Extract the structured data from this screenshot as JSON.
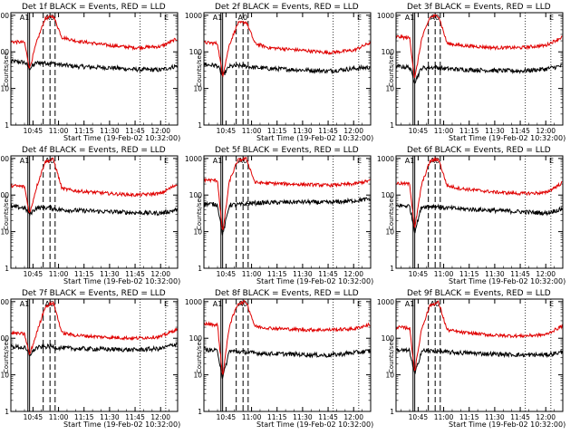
{
  "figure": {
    "title_template": "Det {det} BLACK = Events, RED = LLD",
    "ylabel": "Counts/sec",
    "xlabel": "Start Time (19-Feb-02 10:32:00)",
    "x_ticks": [
      "10:45",
      "11:00",
      "11:15",
      "11:30",
      "11:45",
      "12:00"
    ],
    "y_ticks": [
      "1",
      "10",
      "100",
      "1000"
    ],
    "colors": {
      "events": "#000000",
      "lld": "#e00000",
      "axes": "#000000",
      "background": "#ffffff"
    }
  },
  "chart_data": [
    {
      "type": "line",
      "detector": "1f",
      "title": "Det 1f BLACK = Events, RED = LLD",
      "attenuator_labels": [
        "A1",
        "A0",
        "E"
      ],
      "xlabel": "Start Time (19-Feb-02 10:32:00)",
      "ylabel": "Counts/sec",
      "ylim": [
        1,
        1000
      ],
      "yscale": "log",
      "series": [
        {
          "name": "Events",
          "color": "#000000",
          "x": [
            "10:32",
            "10:40",
            "10:43",
            "10:47",
            "10:55",
            "11:00",
            "11:10",
            "11:30",
            "11:45",
            "12:00",
            "12:10"
          ],
          "values": [
            55,
            52,
            35,
            50,
            50,
            45,
            40,
            37,
            33,
            32,
            42
          ]
        },
        {
          "name": "LLD",
          "color": "#e00000",
          "x": [
            "10:32",
            "10:40",
            "10:43",
            "10:47",
            "10:52",
            "10:57",
            "11:02",
            "11:10",
            "11:30",
            "11:45",
            "12:00",
            "12:10"
          ],
          "values": [
            190,
            180,
            35,
            175,
            800,
            950,
            250,
            200,
            150,
            130,
            140,
            230
          ]
        }
      ]
    },
    {
      "type": "line",
      "detector": "2f",
      "title": "Det 2f BLACK = Events, RED = LLD",
      "attenuator_labels": [
        "A1",
        "A0",
        "E"
      ],
      "xlabel": "Start Time (19-Feb-02 10:32:00)",
      "ylabel": "Counts/sec",
      "ylim": [
        1,
        1000
      ],
      "yscale": "log",
      "series": [
        {
          "name": "Events",
          "color": "#000000",
          "x": [
            "10:32",
            "10:40",
            "10:43",
            "10:47",
            "10:55",
            "11:00",
            "11:10",
            "11:30",
            "11:45",
            "12:00",
            "12:10"
          ],
          "values": [
            45,
            42,
            22,
            40,
            42,
            38,
            35,
            32,
            30,
            35,
            38
          ]
        },
        {
          "name": "LLD",
          "color": "#e00000",
          "x": [
            "10:32",
            "10:40",
            "10:43",
            "10:47",
            "10:52",
            "10:57",
            "11:02",
            "11:10",
            "11:30",
            "11:45",
            "12:00",
            "12:10"
          ],
          "values": [
            180,
            170,
            22,
            160,
            600,
            650,
            170,
            130,
            110,
            95,
            110,
            180
          ]
        }
      ]
    },
    {
      "type": "line",
      "detector": "3f",
      "title": "Det 3f BLACK = Events, RED = LLD",
      "attenuator_labels": [
        "A1",
        "A0",
        "E"
      ],
      "xlabel": "Start Time (19-Feb-02 10:32:00)",
      "ylabel": "Counts/sec",
      "ylim": [
        1,
        1000
      ],
      "yscale": "log",
      "series": [
        {
          "name": "Events",
          "color": "#000000",
          "x": [
            "10:32",
            "10:40",
            "10:43",
            "10:47",
            "10:55",
            "11:00",
            "11:10",
            "11:30",
            "11:45",
            "12:00",
            "12:10"
          ],
          "values": [
            40,
            38,
            15,
            36,
            38,
            35,
            33,
            31,
            30,
            34,
            42
          ]
        },
        {
          "name": "LLD",
          "color": "#e00000",
          "x": [
            "10:32",
            "10:40",
            "10:43",
            "10:47",
            "10:52",
            "10:57",
            "11:02",
            "11:10",
            "11:30",
            "11:45",
            "12:00",
            "12:10"
          ],
          "values": [
            260,
            240,
            18,
            220,
            900,
            980,
            170,
            150,
            130,
            130,
            150,
            260
          ]
        }
      ]
    },
    {
      "type": "line",
      "detector": "4f",
      "title": "Det 4f BLACK = Events, RED = LLD",
      "attenuator_labels": [
        "A1",
        "A0",
        "E"
      ],
      "xlabel": "Start Time (19-Feb-02 10:32:00)",
      "ylabel": "Counts/sec",
      "ylim": [
        1,
        1000
      ],
      "yscale": "log",
      "series": [
        {
          "name": "Events",
          "color": "#000000",
          "x": [
            "10:32",
            "10:40",
            "10:43",
            "10:47",
            "10:55",
            "11:00",
            "11:10",
            "11:30",
            "11:45",
            "12:00",
            "12:10"
          ],
          "values": [
            48,
            45,
            30,
            45,
            45,
            40,
            38,
            35,
            33,
            32,
            40
          ]
        },
        {
          "name": "LLD",
          "color": "#e00000",
          "x": [
            "10:32",
            "10:40",
            "10:43",
            "10:47",
            "10:52",
            "10:57",
            "11:02",
            "11:10",
            "11:30",
            "11:45",
            "12:00",
            "12:10"
          ],
          "values": [
            180,
            170,
            30,
            160,
            800,
            950,
            150,
            130,
            110,
            100,
            110,
            200
          ]
        }
      ]
    },
    {
      "type": "line",
      "detector": "5f",
      "title": "Det 5f BLACK = Events, RED = LLD",
      "attenuator_labels": [
        "A1",
        "A0",
        "E"
      ],
      "xlabel": "Start Time (19-Feb-02 10:32:00)",
      "ylabel": "Counts/sec",
      "ylim": [
        1,
        1000
      ],
      "yscale": "log",
      "series": [
        {
          "name": "Events",
          "color": "#000000",
          "x": [
            "10:32",
            "10:40",
            "10:43",
            "10:47",
            "10:55",
            "11:00",
            "11:10",
            "11:30",
            "11:45",
            "12:00",
            "12:10"
          ],
          "values": [
            58,
            55,
            8,
            54,
            55,
            60,
            62,
            65,
            62,
            70,
            78
          ]
        },
        {
          "name": "LLD",
          "color": "#e00000",
          "x": [
            "10:32",
            "10:40",
            "10:43",
            "10:47",
            "10:52",
            "10:57",
            "11:02",
            "11:10",
            "11:30",
            "11:45",
            "12:00",
            "12:10"
          ],
          "values": [
            260,
            250,
            9,
            240,
            900,
            980,
            220,
            210,
            195,
            185,
            200,
            250
          ]
        }
      ]
    },
    {
      "type": "line",
      "detector": "6f",
      "title": "Det 6f BLACK = Events, RED = LLD",
      "attenuator_labels": [
        "A1",
        "A0",
        "E"
      ],
      "xlabel": "Start Time (19-Feb-02 10:32:00)",
      "ylabel": "Counts/sec",
      "ylim": [
        1,
        1000
      ],
      "yscale": "log",
      "series": [
        {
          "name": "Events",
          "color": "#000000",
          "x": [
            "10:32",
            "10:40",
            "10:43",
            "10:47",
            "10:55",
            "11:00",
            "11:10",
            "11:30",
            "11:45",
            "12:00",
            "12:10"
          ],
          "values": [
            52,
            50,
            10,
            48,
            50,
            45,
            42,
            38,
            35,
            32,
            42
          ]
        },
        {
          "name": "LLD",
          "color": "#e00000",
          "x": [
            "10:32",
            "10:40",
            "10:43",
            "10:47",
            "10:52",
            "10:57",
            "11:02",
            "11:10",
            "11:30",
            "11:45",
            "12:00",
            "12:10"
          ],
          "values": [
            210,
            200,
            12,
            190,
            850,
            950,
            180,
            150,
            120,
            110,
            115,
            220
          ]
        }
      ]
    },
    {
      "type": "line",
      "detector": "7f",
      "title": "Det 7f BLACK = Events, RED = LLD",
      "attenuator_labels": [
        "A1",
        "A0",
        "E"
      ],
      "xlabel": "Start Time (19-Feb-02 10:32:00)",
      "ylabel": "Counts/sec",
      "ylim": [
        1,
        1000
      ],
      "yscale": "log",
      "series": [
        {
          "name": "Events",
          "color": "#000000",
          "x": [
            "10:32",
            "10:40",
            "10:43",
            "10:47",
            "10:55",
            "11:00",
            "11:10",
            "11:30",
            "11:45",
            "12:00",
            "12:10"
          ],
          "values": [
            60,
            55,
            35,
            55,
            60,
            55,
            52,
            50,
            48,
            52,
            72
          ]
        },
        {
          "name": "LLD",
          "color": "#e00000",
          "x": [
            "10:32",
            "10:40",
            "10:43",
            "10:47",
            "10:52",
            "10:57",
            "11:02",
            "11:10",
            "11:30",
            "11:45",
            "12:00",
            "12:10"
          ],
          "values": [
            140,
            130,
            35,
            130,
            700,
            950,
            140,
            120,
            105,
            100,
            110,
            180
          ]
        }
      ]
    },
    {
      "type": "line",
      "detector": "8f",
      "title": "Det 8f BLACK = Events, RED = LLD",
      "attenuator_labels": [
        "A1",
        "A0",
        "E"
      ],
      "xlabel": "Start Time (19-Feb-02 10:32:00)",
      "ylabel": "Counts/sec",
      "ylim": [
        1,
        1000
      ],
      "yscale": "log",
      "series": [
        {
          "name": "Events",
          "color": "#000000",
          "x": [
            "10:32",
            "10:40",
            "10:43",
            "10:47",
            "10:55",
            "11:00",
            "11:10",
            "11:30",
            "11:45",
            "12:00",
            "12:10"
          ],
          "values": [
            50,
            45,
            8,
            45,
            42,
            40,
            38,
            36,
            34,
            40,
            45
          ]
        },
        {
          "name": "LLD",
          "color": "#e00000",
          "x": [
            "10:32",
            "10:40",
            "10:43",
            "10:47",
            "10:52",
            "10:57",
            "11:02",
            "11:10",
            "11:30",
            "11:45",
            "12:00",
            "12:10"
          ],
          "values": [
            250,
            230,
            9,
            220,
            900,
            980,
            210,
            190,
            170,
            170,
            180,
            240
          ]
        }
      ]
    },
    {
      "type": "line",
      "detector": "9f",
      "title": "Det 9f BLACK = Events, RED = LLD",
      "attenuator_labels": [
        "A1",
        "A0",
        "E"
      ],
      "xlabel": "Start Time (19-Feb-02 10:32:00)",
      "ylabel": "Counts/sec",
      "ylim": [
        1,
        1000
      ],
      "yscale": "log",
      "series": [
        {
          "name": "Events",
          "color": "#000000",
          "x": [
            "10:32",
            "10:40",
            "10:43",
            "10:47",
            "10:55",
            "11:00",
            "11:10",
            "11:30",
            "11:45",
            "12:00",
            "12:10"
          ],
          "values": [
            48,
            45,
            10,
            45,
            45,
            42,
            40,
            37,
            35,
            35,
            42
          ]
        },
        {
          "name": "LLD",
          "color": "#e00000",
          "x": [
            "10:32",
            "10:40",
            "10:43",
            "10:47",
            "10:52",
            "10:57",
            "11:02",
            "11:10",
            "11:30",
            "11:45",
            "12:00",
            "12:10"
          ],
          "values": [
            200,
            190,
            12,
            180,
            800,
            950,
            170,
            145,
            120,
            115,
            125,
            220
          ]
        }
      ]
    }
  ]
}
